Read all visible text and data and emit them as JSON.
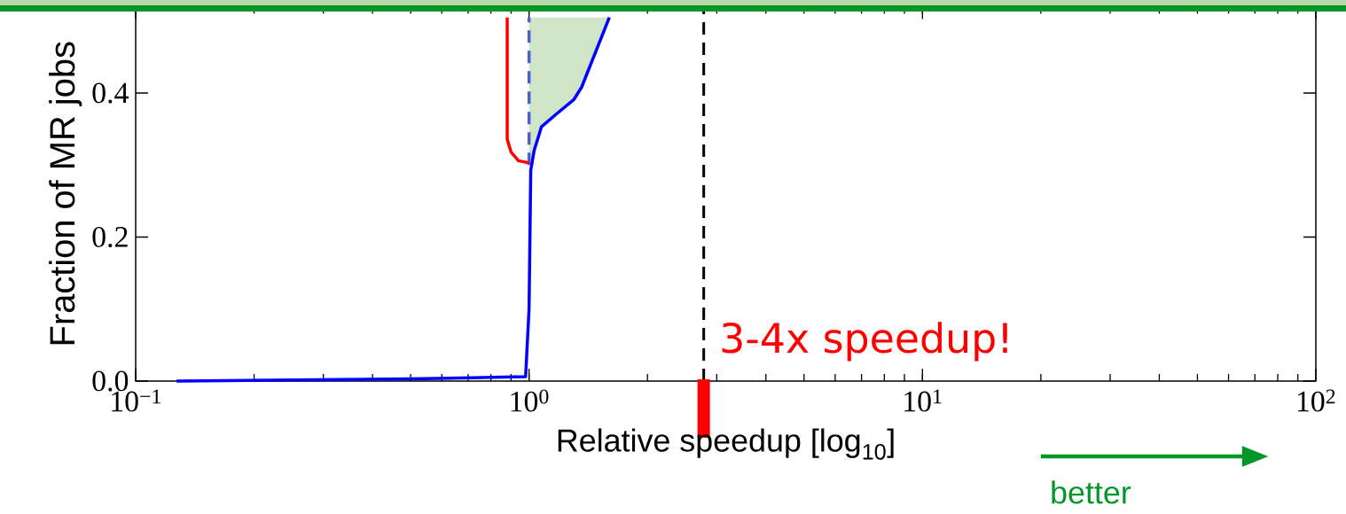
{
  "chart_data": {
    "type": "line",
    "xlabel": "Relative speedup [log$_{10}$]",
    "ylabel": "Fraction of MR jobs",
    "log": "x",
    "xlim": [
      0.1,
      100
    ],
    "ylim": [
      0,
      0.52
    ],
    "xticks": [
      {
        "value": 0.1,
        "label": "10$^{−1}$"
      },
      {
        "value": 1,
        "label": "10$^{0}$"
      },
      {
        "value": 10,
        "label": "10$^{1}$"
      },
      {
        "value": 100,
        "label": "10$^{2}$"
      }
    ],
    "yticks": [
      {
        "value": 0,
        "label": "0.0"
      },
      {
        "value": 0.2,
        "label": "0.2"
      },
      {
        "value": 0.4,
        "label": "0.4"
      }
    ],
    "series": [
      {
        "type": "area",
        "color": "#d0e5c8",
        "x": [
          1.0,
          1.03,
          1.075,
          1.18,
          1.3,
          1.36,
          1.6,
          1.0
        ],
        "values": [
          0.3,
          0.32,
          0.353,
          0.372,
          0.391,
          0.408,
          0.505,
          0.505
        ]
      },
      {
        "color": "#4a5fd0",
        "line_style": "dashed",
        "x": [
          1.0,
          1.0
        ],
        "values": [
          0.3,
          0.505
        ]
      },
      {
        "color": "#ff0000",
        "x": [
          0.88,
          0.88,
          0.9,
          0.94,
          1.0
        ],
        "values": [
          0.505,
          0.336,
          0.318,
          0.306,
          0.303
        ]
      },
      {
        "color": "#0000ff",
        "x": [
          0.127,
          0.5,
          0.98,
          1.0,
          1.01,
          1.03,
          1.075,
          1.18,
          1.3,
          1.36,
          1.6
        ],
        "values": [
          0,
          0.003,
          0.006,
          0.1,
          0.293,
          0.32,
          0.353,
          0.372,
          0.391,
          0.408,
          0.505
        ]
      }
    ],
    "ref_lines": [
      {
        "axis": "x",
        "value": 2.78,
        "color": "#000000",
        "line_style": "dashed"
      }
    ],
    "annotations": [
      {
        "text": "3-4x speedup!",
        "x": 2.78,
        "y": 0.055
      },
      "better"
    ]
  }
}
